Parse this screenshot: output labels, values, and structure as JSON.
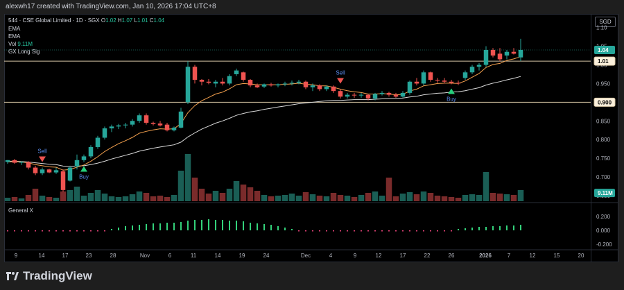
{
  "header": {
    "attribution": "alexwh17 created with TradingView.com, Jan 10, 2026 17:04 UTC+8"
  },
  "footer": {
    "brand": "TradingView"
  },
  "legend": {
    "symbol": "544 · CSE Global Limited · 1D · SGX",
    "ohlc": {
      "O": "1.02",
      "H": "1.07",
      "L": "1.01",
      "C": "1.04"
    },
    "ema1": "EMA",
    "ema2": "EMA",
    "vol_label": "Vol",
    "vol_value": "9.11M",
    "gx_label": "GX Long Sig",
    "pane2_title": "General X"
  },
  "currency": "SGD",
  "colors": {
    "up": "#26a69a",
    "down": "#ef5350",
    "vol_up": "#1a5e55",
    "vol_down": "#7a2b2b",
    "ema_fast": "#f5a14e",
    "ema_slow": "#d9d9d9",
    "hist": "#33d17a",
    "hist_neg": "#e9447a",
    "hline": "#d8c7a6"
  },
  "chart_data": {
    "type": "candlestick",
    "x_ticks": [
      "9",
      "14",
      "17",
      "23",
      "28",
      "Nov",
      "6",
      "11",
      "14",
      "19",
      "24",
      "Dec",
      "4",
      "9",
      "12",
      "17",
      "22",
      "26",
      "2026",
      "7",
      "12",
      "15",
      "20"
    ],
    "price_axis": {
      "ticks": [
        "1.10",
        "1.05",
        "1.00",
        "0.950",
        "0.900",
        "0.850",
        "0.800",
        "0.750",
        "0.700",
        "0.650"
      ],
      "range": [
        0.635,
        1.105
      ]
    },
    "price_badges": [
      {
        "label": "1.04",
        "value": 1.04,
        "style": "green"
      },
      {
        "label": "1.01",
        "value": 1.01,
        "style": "line"
      },
      {
        "label": "0.900",
        "value": 0.9,
        "style": "line"
      },
      {
        "label": "9.11M",
        "value": 0.657,
        "style": "green"
      }
    ],
    "horizontal_lines": [
      1.01,
      0.9
    ],
    "candles": [
      {
        "o": 0.74,
        "h": 0.745,
        "l": 0.735,
        "c": 0.745,
        "v": 0.5
      },
      {
        "o": 0.745,
        "h": 0.748,
        "l": 0.735,
        "c": 0.738,
        "v": 0.6
      },
      {
        "o": 0.738,
        "h": 0.742,
        "l": 0.732,
        "c": 0.74,
        "v": 0.4
      },
      {
        "o": 0.74,
        "h": 0.742,
        "l": 0.72,
        "c": 0.725,
        "v": 0.9
      },
      {
        "o": 0.725,
        "h": 0.73,
        "l": 0.705,
        "c": 0.71,
        "v": 1.8
      },
      {
        "o": 0.71,
        "h": 0.725,
        "l": 0.705,
        "c": 0.72,
        "v": 0.8
      },
      {
        "o": 0.72,
        "h": 0.722,
        "l": 0.71,
        "c": 0.712,
        "v": 0.6
      },
      {
        "o": 0.712,
        "h": 0.725,
        "l": 0.708,
        "c": 0.718,
        "v": 0.5
      },
      {
        "o": 0.715,
        "h": 0.72,
        "l": 0.66,
        "c": 0.665,
        "v": 1.4
      },
      {
        "o": 0.69,
        "h": 0.73,
        "l": 0.688,
        "c": 0.725,
        "v": 1.6
      },
      {
        "o": 0.728,
        "h": 0.76,
        "l": 0.72,
        "c": 0.745,
        "v": 2.1
      },
      {
        "o": 0.745,
        "h": 0.76,
        "l": 0.74,
        "c": 0.755,
        "v": 0.8
      },
      {
        "o": 0.755,
        "h": 0.785,
        "l": 0.75,
        "c": 0.78,
        "v": 1.2
      },
      {
        "o": 0.78,
        "h": 0.81,
        "l": 0.775,
        "c": 0.805,
        "v": 1.6
      },
      {
        "o": 0.805,
        "h": 0.835,
        "l": 0.8,
        "c": 0.83,
        "v": 1.1
      },
      {
        "o": 0.83,
        "h": 0.84,
        "l": 0.82,
        "c": 0.835,
        "v": 0.7
      },
      {
        "o": 0.835,
        "h": 0.842,
        "l": 0.828,
        "c": 0.838,
        "v": 0.6
      },
      {
        "o": 0.838,
        "h": 0.845,
        "l": 0.83,
        "c": 0.84,
        "v": 0.7
      },
      {
        "o": 0.84,
        "h": 0.855,
        "l": 0.835,
        "c": 0.85,
        "v": 1.0
      },
      {
        "o": 0.85,
        "h": 0.87,
        "l": 0.845,
        "c": 0.865,
        "v": 1.4
      },
      {
        "o": 0.865,
        "h": 0.87,
        "l": 0.84,
        "c": 0.845,
        "v": 1.2
      },
      {
        "o": 0.845,
        "h": 0.848,
        "l": 0.838,
        "c": 0.842,
        "v": 0.7
      },
      {
        "o": 0.843,
        "h": 0.85,
        "l": 0.835,
        "c": 0.838,
        "v": 0.8
      },
      {
        "o": 0.84,
        "h": 0.845,
        "l": 0.822,
        "c": 0.825,
        "v": 0.6
      },
      {
        "o": 0.825,
        "h": 0.835,
        "l": 0.822,
        "c": 0.832,
        "v": 0.9
      },
      {
        "o": 0.832,
        "h": 0.885,
        "l": 0.83,
        "c": 0.875,
        "v": 4.4
      },
      {
        "o": 0.9,
        "h": 1.01,
        "l": 0.895,
        "c": 0.995,
        "v": 6.8
      },
      {
        "o": 0.995,
        "h": 1.0,
        "l": 0.95,
        "c": 0.96,
        "v": 3.4
      },
      {
        "o": 0.96,
        "h": 0.962,
        "l": 0.945,
        "c": 0.955,
        "v": 1.8
      },
      {
        "o": 0.955,
        "h": 0.962,
        "l": 0.948,
        "c": 0.952,
        "v": 1.1
      },
      {
        "o": 0.95,
        "h": 0.96,
        "l": 0.94,
        "c": 0.955,
        "v": 1.5
      },
      {
        "o": 0.955,
        "h": 0.965,
        "l": 0.945,
        "c": 0.95,
        "v": 1.2
      },
      {
        "o": 0.95,
        "h": 0.975,
        "l": 0.945,
        "c": 0.97,
        "v": 1.8
      },
      {
        "o": 0.975,
        "h": 0.99,
        "l": 0.97,
        "c": 0.985,
        "v": 2.9
      },
      {
        "o": 0.98,
        "h": 0.982,
        "l": 0.955,
        "c": 0.96,
        "v": 2.4
      },
      {
        "o": 0.96,
        "h": 0.962,
        "l": 0.94,
        "c": 0.945,
        "v": 2.0
      },
      {
        "o": 0.945,
        "h": 0.95,
        "l": 0.938,
        "c": 0.94,
        "v": 1.5
      },
      {
        "o": 0.942,
        "h": 0.95,
        "l": 0.938,
        "c": 0.948,
        "v": 0.9
      },
      {
        "o": 0.948,
        "h": 0.952,
        "l": 0.942,
        "c": 0.945,
        "v": 0.7
      },
      {
        "o": 0.945,
        "h": 0.95,
        "l": 0.94,
        "c": 0.948,
        "v": 0.8
      },
      {
        "o": 0.948,
        "h": 0.955,
        "l": 0.943,
        "c": 0.95,
        "v": 0.9
      },
      {
        "o": 0.95,
        "h": 0.958,
        "l": 0.945,
        "c": 0.952,
        "v": 1.1
      },
      {
        "o": 0.952,
        "h": 0.96,
        "l": 0.948,
        "c": 0.955,
        "v": 0.8
      },
      {
        "o": 0.955,
        "h": 0.958,
        "l": 0.935,
        "c": 0.94,
        "v": 1.3
      },
      {
        "o": 0.94,
        "h": 0.95,
        "l": 0.93,
        "c": 0.945,
        "v": 1.0
      },
      {
        "o": 0.945,
        "h": 0.948,
        "l": 0.93,
        "c": 0.935,
        "v": 0.8
      },
      {
        "o": 0.935,
        "h": 0.945,
        "l": 0.93,
        "c": 0.942,
        "v": 0.7
      },
      {
        "o": 0.942,
        "h": 0.945,
        "l": 0.925,
        "c": 0.93,
        "v": 1.2
      },
      {
        "o": 0.93,
        "h": 0.935,
        "l": 0.91,
        "c": 0.915,
        "v": 0.9
      },
      {
        "o": 0.915,
        "h": 0.925,
        "l": 0.91,
        "c": 0.92,
        "v": 0.8
      },
      {
        "o": 0.92,
        "h": 0.925,
        "l": 0.912,
        "c": 0.918,
        "v": 0.6
      },
      {
        "o": 0.918,
        "h": 0.925,
        "l": 0.912,
        "c": 0.92,
        "v": 0.9
      },
      {
        "o": 0.92,
        "h": 0.922,
        "l": 0.905,
        "c": 0.91,
        "v": 1.2
      },
      {
        "o": 0.91,
        "h": 0.925,
        "l": 0.905,
        "c": 0.922,
        "v": 1.4
      },
      {
        "o": 0.922,
        "h": 0.93,
        "l": 0.918,
        "c": 0.925,
        "v": 0.8
      },
      {
        "o": 0.925,
        "h": 0.928,
        "l": 0.915,
        "c": 0.92,
        "v": 3.4
      },
      {
        "o": 0.92,
        "h": 0.925,
        "l": 0.912,
        "c": 0.915,
        "v": 0.7
      },
      {
        "o": 0.915,
        "h": 0.93,
        "l": 0.912,
        "c": 0.925,
        "v": 1.1
      },
      {
        "o": 0.925,
        "h": 0.958,
        "l": 0.92,
        "c": 0.955,
        "v": 1.3
      },
      {
        "o": 0.955,
        "h": 0.965,
        "l": 0.945,
        "c": 0.95,
        "v": 1.0
      },
      {
        "o": 0.95,
        "h": 0.985,
        "l": 0.945,
        "c": 0.98,
        "v": 1.4
      },
      {
        "o": 0.98,
        "h": 0.982,
        "l": 0.955,
        "c": 0.96,
        "v": 1.2
      },
      {
        "o": 0.96,
        "h": 0.965,
        "l": 0.952,
        "c": 0.958,
        "v": 0.8
      },
      {
        "o": 0.958,
        "h": 0.965,
        "l": 0.95,
        "c": 0.955,
        "v": 0.7
      },
      {
        "o": 0.955,
        "h": 0.96,
        "l": 0.948,
        "c": 0.952,
        "v": 0.6
      },
      {
        "o": 0.952,
        "h": 0.958,
        "l": 0.946,
        "c": 0.95,
        "v": 0.5
      },
      {
        "o": 0.965,
        "h": 0.985,
        "l": 0.96,
        "c": 0.98,
        "v": 0.9
      },
      {
        "o": 0.98,
        "h": 1.0,
        "l": 0.975,
        "c": 0.995,
        "v": 1.0
      },
      {
        "o": 0.995,
        "h": 1.005,
        "l": 0.985,
        "c": 1.0,
        "v": 0.9
      },
      {
        "o": 1.0,
        "h": 1.05,
        "l": 0.995,
        "c": 1.04,
        "v": 4.2
      },
      {
        "o": 1.04,
        "h": 1.045,
        "l": 1.02,
        "c": 1.025,
        "v": 1.2
      },
      {
        "o": 1.03,
        "h": 1.045,
        "l": 1.01,
        "c": 1.015,
        "v": 1.1
      },
      {
        "o": 1.025,
        "h": 1.04,
        "l": 1.015,
        "c": 1.035,
        "v": 1.0
      },
      {
        "o": 1.035,
        "h": 1.045,
        "l": 1.028,
        "c": 1.03,
        "v": 0.9
      },
      {
        "o": 1.02,
        "h": 1.07,
        "l": 1.01,
        "c": 1.04,
        "v": 1.6
      }
    ],
    "ema_fast": [
      0.74,
      0.741,
      0.74,
      0.738,
      0.733,
      0.73,
      0.727,
      0.726,
      0.718,
      0.72,
      0.726,
      0.732,
      0.742,
      0.754,
      0.768,
      0.779,
      0.789,
      0.797,
      0.806,
      0.817,
      0.822,
      0.826,
      0.829,
      0.828,
      0.829,
      0.843,
      0.872,
      0.891,
      0.904,
      0.913,
      0.922,
      0.927,
      0.936,
      0.947,
      0.95,
      0.949,
      0.947,
      0.947,
      0.947,
      0.947,
      0.948,
      0.949,
      0.951,
      0.948,
      0.947,
      0.944,
      0.944,
      0.94,
      0.935,
      0.931,
      0.928,
      0.926,
      0.922,
      0.922,
      0.923,
      0.922,
      0.92,
      0.921,
      0.93,
      0.935,
      0.944,
      0.947,
      0.95,
      0.951,
      0.951,
      0.95,
      0.957,
      0.967,
      0.977,
      0.993,
      1.001,
      1.004,
      1.012,
      1.016,
      1.022
    ],
    "ema_slow": [
      0.742,
      0.742,
      0.741,
      0.74,
      0.738,
      0.736,
      0.734,
      0.733,
      0.729,
      0.728,
      0.729,
      0.73,
      0.733,
      0.737,
      0.742,
      0.748,
      0.753,
      0.758,
      0.763,
      0.769,
      0.773,
      0.777,
      0.78,
      0.783,
      0.786,
      0.793,
      0.807,
      0.818,
      0.828,
      0.836,
      0.844,
      0.85,
      0.857,
      0.865,
      0.87,
      0.874,
      0.877,
      0.881,
      0.884,
      0.887,
      0.89,
      0.893,
      0.896,
      0.898,
      0.9,
      0.902,
      0.904,
      0.905,
      0.905,
      0.906,
      0.907,
      0.907,
      0.907,
      0.908,
      0.909,
      0.91,
      0.91,
      0.911,
      0.914,
      0.916,
      0.92,
      0.922,
      0.924,
      0.925,
      0.927,
      0.928,
      0.931,
      0.935,
      0.939,
      0.946,
      0.951,
      0.955,
      0.96,
      0.964,
      0.969
    ],
    "signals": [
      {
        "index": 5,
        "type": "Sell"
      },
      {
        "index": 11,
        "type": "Buy"
      },
      {
        "index": 48,
        "type": "Sell"
      },
      {
        "index": 64,
        "type": "Buy"
      }
    ],
    "oscillator": {
      "title": "General X",
      "axis_ticks": [
        "0.200",
        "0.000",
        "-0.200"
      ],
      "range": [
        -0.24,
        0.24
      ],
      "values": [
        -0.008,
        -0.008,
        -0.008,
        -0.008,
        -0.008,
        -0.008,
        -0.008,
        -0.008,
        -0.008,
        -0.008,
        -0.008,
        -0.008,
        -0.008,
        -0.006,
        -0.004,
        0.02,
        0.04,
        0.06,
        0.07,
        0.08,
        0.09,
        0.1,
        0.1,
        0.11,
        0.11,
        0.12,
        0.14,
        0.15,
        0.15,
        0.16,
        0.15,
        0.15,
        0.14,
        0.14,
        0.13,
        0.11,
        0.1,
        0.09,
        0.08,
        0.06,
        0.04,
        0.02,
        -0.004,
        -0.008,
        -0.008,
        -0.008,
        -0.008,
        -0.008,
        -0.008,
        -0.008,
        -0.008,
        -0.008,
        -0.008,
        -0.008,
        -0.008,
        -0.008,
        -0.008,
        -0.008,
        -0.008,
        -0.008,
        -0.008,
        -0.008,
        -0.008,
        -0.008,
        -0.006,
        0.02,
        0.03,
        0.04,
        0.05,
        0.05,
        0.06,
        0.06,
        0.07,
        0.07,
        0.08
      ]
    }
  }
}
